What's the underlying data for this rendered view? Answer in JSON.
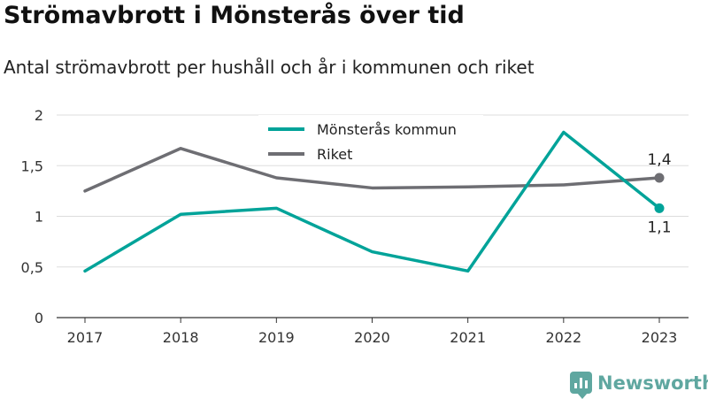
{
  "chart_data": {
    "type": "line",
    "title": "Strömavbrott i Mönsterås över tid",
    "subtitle": "Antal strömavbrott per hushåll och år i kommunen och riket",
    "xlabel": "",
    "ylabel": "",
    "categories": [
      "2017",
      "2018",
      "2019",
      "2020",
      "2021",
      "2022",
      "2023"
    ],
    "y_ticks": [
      "0",
      "0,5",
      "1",
      "1,5",
      "2"
    ],
    "ylim": [
      0,
      2
    ],
    "grid": true,
    "legend_position": "top-center",
    "series": [
      {
        "name": "Mönsterås kommun",
        "color": "#00a399",
        "values": [
          0.46,
          1.02,
          1.08,
          0.65,
          0.46,
          1.83,
          1.08
        ],
        "end_label": "1,1"
      },
      {
        "name": "Riket",
        "color": "#6e6e73",
        "values": [
          1.25,
          1.67,
          1.38,
          1.28,
          1.29,
          1.31,
          1.38
        ],
        "end_label": "1,4"
      }
    ]
  },
  "brand": {
    "name": "Newsworthy",
    "color": "#5fa7a0"
  }
}
